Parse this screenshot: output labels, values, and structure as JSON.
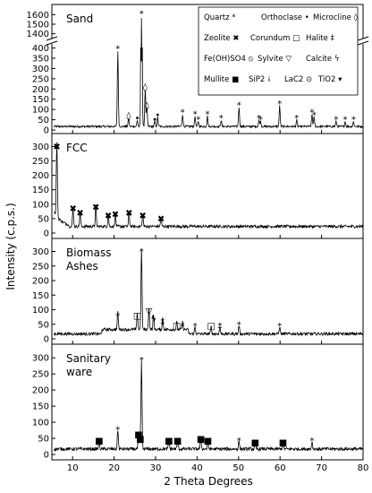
{
  "chart_data": {
    "type": "line",
    "xlabel": "2 Theta Degrees",
    "ylabel": "Intensity (c.p.s.)",
    "xlim": [
      5,
      80
    ],
    "x_ticks": [
      "10",
      "20",
      "30",
      "40",
      "50",
      "60",
      "70",
      "80"
    ],
    "legend": {
      "placement": "top-right of first panel",
      "entries": [
        {
          "name": "Quartz",
          "symbol": "*"
        },
        {
          "name": "Orthoclase",
          "symbol": "•"
        },
        {
          "name": "Microcline",
          "symbol": "◊"
        },
        {
          "name": "Zeolite",
          "symbol": "✖"
        },
        {
          "name": "Corundum",
          "symbol": "□"
        },
        {
          "name": "Halite",
          "symbol": "‡"
        },
        {
          "name": "Fe(OH)SO4",
          "symbol": "⦸"
        },
        {
          "name": "Sylvite",
          "symbol": "▽"
        },
        {
          "name": "Calcite",
          "symbol": "ϟ"
        },
        {
          "name": "Mullite",
          "symbol": "■"
        },
        {
          "name": "SiP2",
          "symbol": "⫰"
        },
        {
          "name": "LaC2",
          "symbol": "⊙"
        },
        {
          "name": "TiO2",
          "symbol": "▾"
        }
      ]
    },
    "panels": [
      {
        "name": "Sand",
        "y_ticks": [
          "0",
          "50",
          "100",
          "150",
          "200",
          "250",
          "300",
          "350",
          "400",
          "1400",
          "1500",
          "1600"
        ],
        "axis_break": [
          420,
          1350
        ],
        "peaks": [
          {
            "x": 20.9,
            "y": 370,
            "marker": "*"
          },
          {
            "x": 26.6,
            "y": 1550,
            "marker": "*"
          },
          {
            "x": 36.5,
            "y": 60,
            "marker": "*"
          },
          {
            "x": 39.5,
            "y": 50,
            "marker": "*"
          },
          {
            "x": 40.3,
            "y": 25,
            "marker": "*"
          },
          {
            "x": 42.5,
            "y": 50,
            "marker": "*"
          },
          {
            "x": 45.8,
            "y": 30,
            "marker": "*"
          },
          {
            "x": 50.1,
            "y": 95,
            "marker": "*"
          },
          {
            "x": 54.9,
            "y": 30,
            "marker": "*"
          },
          {
            "x": 55.3,
            "y": 25,
            "marker": "*"
          },
          {
            "x": 59.9,
            "y": 100,
            "marker": "*"
          },
          {
            "x": 64.0,
            "y": 30,
            "marker": "*"
          },
          {
            "x": 67.7,
            "y": 60,
            "marker": "*"
          },
          {
            "x": 68.2,
            "y": 45,
            "marker": "*"
          },
          {
            "x": 73.5,
            "y": 25,
            "marker": "*"
          },
          {
            "x": 75.7,
            "y": 25,
            "marker": "*"
          },
          {
            "x": 77.7,
            "y": 25,
            "marker": "*"
          },
          {
            "x": 27.5,
            "y": 180,
            "marker": "◊"
          },
          {
            "x": 23.5,
            "y": 40,
            "marker": "◊"
          },
          {
            "x": 25.6,
            "y": 30,
            "marker": "•"
          },
          {
            "x": 27.9,
            "y": 90,
            "marker": "◊"
          },
          {
            "x": 29.8,
            "y": 25,
            "marker": "•"
          },
          {
            "x": 30.5,
            "y": 45,
            "marker": "•"
          }
        ]
      },
      {
        "name": "FCC",
        "y_ticks": [
          "0",
          "50",
          "100",
          "150",
          "200",
          "250",
          "300"
        ],
        "peaks": [
          {
            "x": 6.2,
            "y": 280,
            "marker": "✖"
          },
          {
            "x": 10.1,
            "y": 65,
            "marker": "✖"
          },
          {
            "x": 11.8,
            "y": 50,
            "marker": "✖"
          },
          {
            "x": 15.6,
            "y": 70,
            "marker": "✖"
          },
          {
            "x": 18.6,
            "y": 40,
            "marker": "✖"
          },
          {
            "x": 20.3,
            "y": 45,
            "marker": "✖"
          },
          {
            "x": 23.6,
            "y": 50,
            "marker": "✖"
          },
          {
            "x": 26.9,
            "y": 40,
            "marker": "✖"
          },
          {
            "x": 31.3,
            "y": 30,
            "marker": "✖"
          }
        ]
      },
      {
        "name": "Biomass Ashes",
        "y_ticks": [
          "0",
          "50",
          "100",
          "150",
          "200",
          "250",
          "300"
        ],
        "peaks": [
          {
            "x": 26.6,
            "y": 280,
            "marker": "*"
          },
          {
            "x": 20.9,
            "y": 60,
            "marker": "*"
          },
          {
            "x": 25.6,
            "y": 60,
            "marker": "□"
          },
          {
            "x": 28.4,
            "y": 75,
            "marker": "▽"
          },
          {
            "x": 29.5,
            "y": 50,
            "marker": "ϟ"
          },
          {
            "x": 31.7,
            "y": 40,
            "marker": "‡"
          },
          {
            "x": 35.1,
            "y": 25,
            "marker": "□"
          },
          {
            "x": 36.5,
            "y": 25,
            "marker": "*"
          },
          {
            "x": 39.5,
            "y": 25,
            "marker": "*"
          },
          {
            "x": 43.4,
            "y": 25,
            "marker": "□"
          },
          {
            "x": 45.5,
            "y": 25,
            "marker": "‡"
          },
          {
            "x": 50.1,
            "y": 30,
            "marker": "*"
          },
          {
            "x": 59.9,
            "y": 25,
            "marker": "*"
          }
        ]
      },
      {
        "name": "Sanitary ware",
        "y_ticks": [
          "0",
          "50",
          "100",
          "150",
          "200",
          "250",
          "300"
        ],
        "peaks": [
          {
            "x": 26.6,
            "y": 275,
            "marker": "*"
          },
          {
            "x": 20.9,
            "y": 60,
            "marker": "*"
          },
          {
            "x": 16.4,
            "y": 25,
            "marker": "■"
          },
          {
            "x": 25.9,
            "y": 45,
            "marker": "■"
          },
          {
            "x": 26.3,
            "y": 30,
            "marker": "■"
          },
          {
            "x": 33.2,
            "y": 25,
            "marker": "■"
          },
          {
            "x": 35.3,
            "y": 25,
            "marker": "■"
          },
          {
            "x": 40.9,
            "y": 30,
            "marker": "■"
          },
          {
            "x": 42.6,
            "y": 25,
            "marker": "■"
          },
          {
            "x": 50.1,
            "y": 25,
            "marker": "*"
          },
          {
            "x": 54.0,
            "y": 20,
            "marker": "■"
          },
          {
            "x": 60.7,
            "y": 20,
            "marker": "■"
          },
          {
            "x": 67.7,
            "y": 25,
            "marker": "*"
          }
        ]
      }
    ]
  }
}
